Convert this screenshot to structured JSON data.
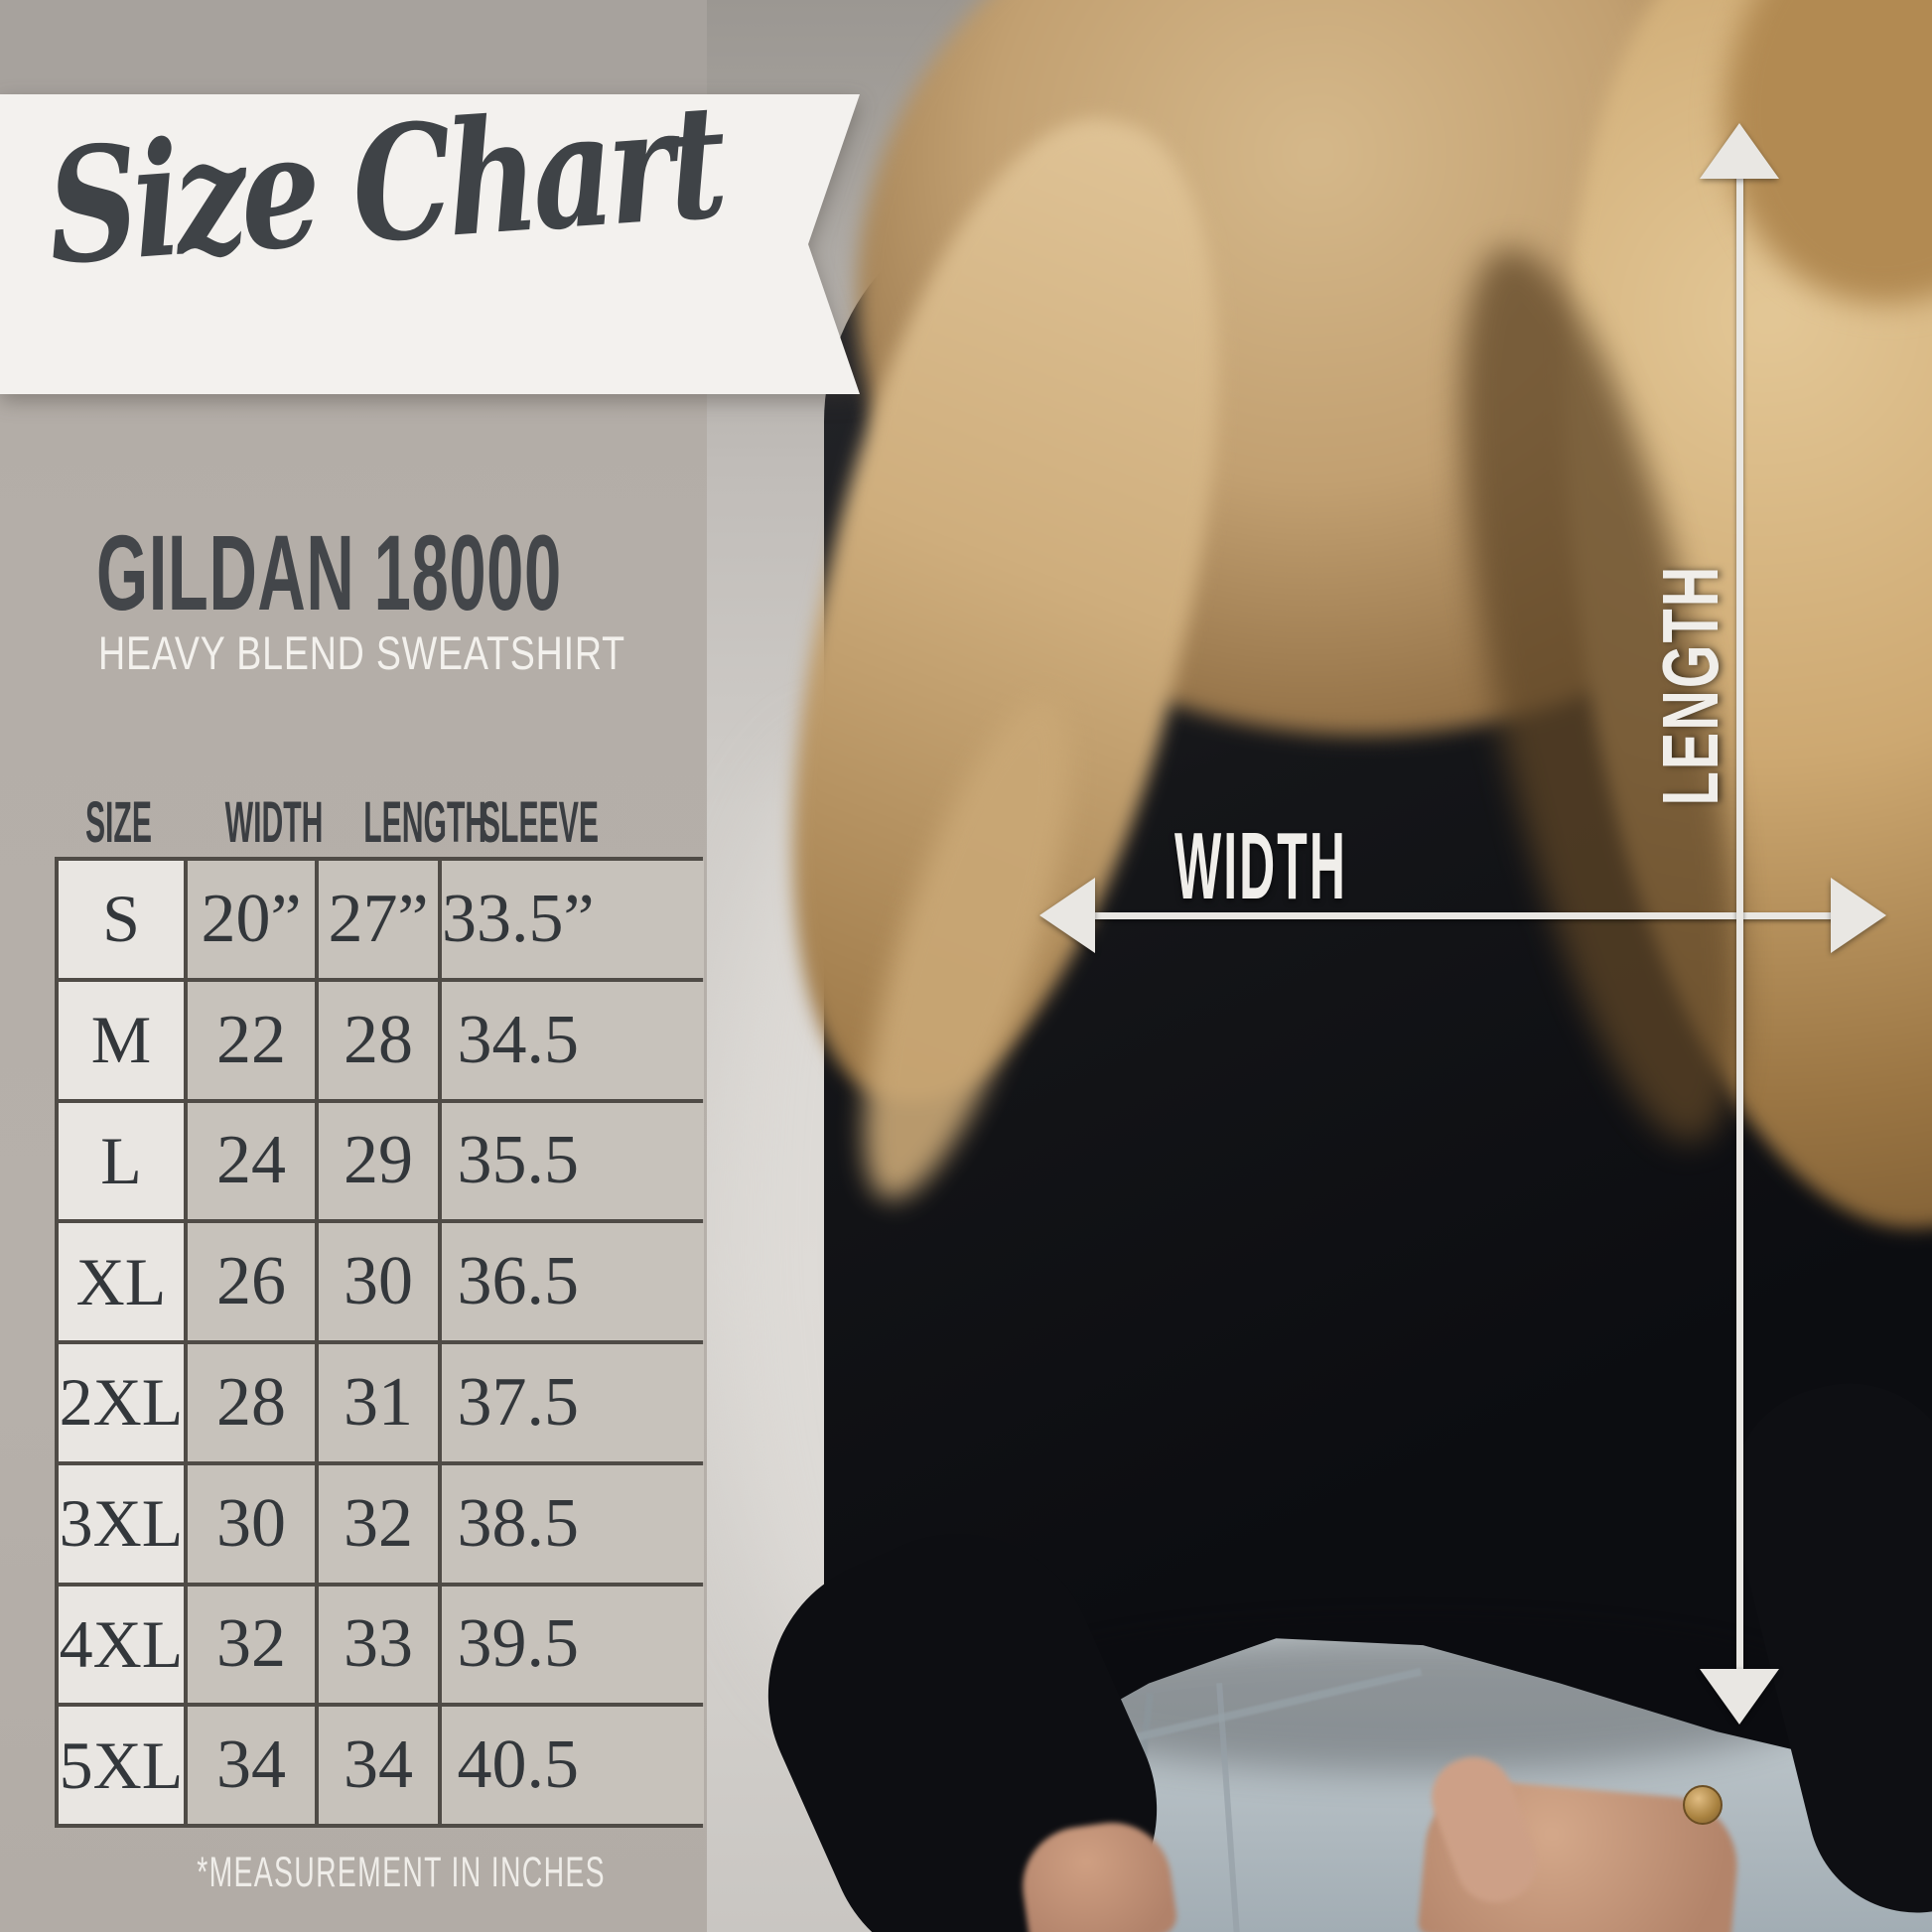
{
  "banner": {
    "title": "Size Chart"
  },
  "product": {
    "name": "GILDAN 18000",
    "subtitle": "HEAVY BLEND SWEATSHIRT"
  },
  "table": {
    "headers": [
      "SIZE",
      "WIDTH",
      "LENGTH",
      "SLEEVE"
    ],
    "rows": [
      [
        "S",
        "20”",
        "27”",
        "33.5”"
      ],
      [
        "M",
        "22",
        "28",
        "34.5"
      ],
      [
        "L",
        "24",
        "29",
        "35.5"
      ],
      [
        "XL",
        "26",
        "30",
        "36.5"
      ],
      [
        "2XL",
        "28",
        "31",
        "37.5"
      ],
      [
        "3XL",
        "30",
        "32",
        "38.5"
      ],
      [
        "4XL",
        "32",
        "33",
        "39.5"
      ],
      [
        "5XL",
        "34",
        "34",
        "40.5"
      ]
    ],
    "footnote": "*MEASUREMENT IN INCHES"
  },
  "overlay": {
    "width_label": "WIDTH",
    "length_label": "LENGTH"
  },
  "colors": {
    "panel": "#b3ada7",
    "banner": "#f3f1ee",
    "ink": "#3f4347",
    "cell_light": "#e9e6e2",
    "cell_dark": "#c7c2bb",
    "table_border": "#4f4b46",
    "overlay_white": "#e9e7e3",
    "sweatshirt_black": "#0e0f13",
    "jeans_blue": "#bac3c8"
  },
  "chart_data": {
    "type": "table",
    "title": "Size Chart",
    "product": "GILDAN 18000 Heavy Blend Sweatshirt",
    "columns": [
      "SIZE",
      "WIDTH",
      "LENGTH",
      "SLEEVE"
    ],
    "rows": [
      [
        "S",
        "20”",
        "27”",
        "33.5”"
      ],
      [
        "M",
        "22",
        "28",
        "34.5"
      ],
      [
        "L",
        "24",
        "29",
        "35.5"
      ],
      [
        "XL",
        "26",
        "30",
        "36.5"
      ],
      [
        "2XL",
        "28",
        "31",
        "37.5"
      ],
      [
        "3XL",
        "30",
        "32",
        "38.5"
      ],
      [
        "4XL",
        "32",
        "33",
        "39.5"
      ],
      [
        "5XL",
        "34",
        "34",
        "40.5"
      ]
    ],
    "units": "inches",
    "note": "*MEASUREMENT IN INCHES"
  }
}
